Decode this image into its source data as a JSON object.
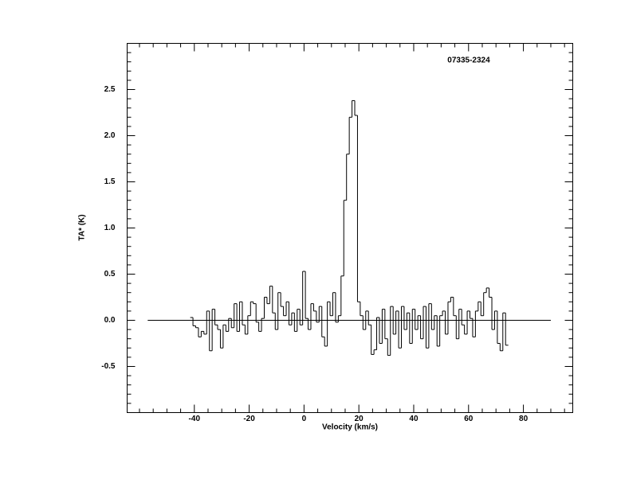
{
  "chart_data": {
    "type": "step",
    "title": "07335-2324",
    "x_label": "Velocity (km/s)",
    "y_label": "TA* (K)",
    "color": "#000000",
    "xlim": [
      -64.5,
      98
    ],
    "ylim": [
      -1,
      3
    ],
    "xticks": [
      -40,
      -20,
      0,
      20,
      40,
      60,
      80
    ],
    "yticks": [
      -0.5,
      {
        "value": 0,
        "label": "0.0"
      },
      0.5,
      {
        "value": 1,
        "label": "1.0"
      },
      1.5,
      {
        "value": 2,
        "label": "2.0"
      },
      2.5
    ],
    "xminorticks": [
      -60,
      -55,
      -50,
      -45,
      -35,
      -30,
      -25,
      -15,
      -10,
      -5,
      5,
      10,
      15,
      25,
      30,
      35,
      45,
      50,
      55,
      65,
      70,
      75,
      85,
      90,
      95
    ],
    "yminorticks": [
      -0.9,
      -0.8,
      -0.7,
      -0.6,
      -0.4,
      -0.3,
      -0.2,
      -0.1,
      0.1,
      0.2,
      0.3,
      0.4,
      0.6,
      0.7,
      0.8,
      0.9,
      1.1,
      1.2,
      1.3,
      1.4,
      1.6,
      1.7,
      1.8,
      1.9,
      2.1,
      2.2,
      2.3,
      2.4,
      2.6,
      2.7,
      2.8,
      2.9
    ],
    "baseline": {
      "xlim": [
        -57,
        90
      ],
      "value": 0
    },
    "x": [
      -41,
      -40,
      -39,
      -38,
      -37,
      -36,
      -35,
      -34,
      -33,
      -32,
      -31,
      -30,
      -29,
      -28,
      -27,
      -26,
      -25,
      -24,
      -23,
      -22,
      -21,
      -20,
      -19,
      -18,
      -17,
      -16,
      -15,
      -14,
      -13,
      -12,
      -11,
      -10,
      -9,
      -8,
      -7,
      -6,
      -5,
      -4,
      -3,
      -2,
      -1,
      0,
      1,
      2,
      3,
      4,
      5,
      6,
      7,
      8,
      9,
      10,
      11,
      12,
      13,
      14,
      15,
      16,
      17,
      18,
      19,
      20,
      21,
      22,
      23,
      24,
      25,
      26,
      27,
      28,
      29,
      30,
      31,
      32,
      33,
      34,
      35,
      36,
      37,
      38,
      39,
      40,
      41,
      42,
      43,
      44,
      45,
      46,
      47,
      48,
      49,
      50,
      51,
      52,
      53,
      54,
      55,
      56,
      57,
      58,
      59,
      60,
      61,
      62,
      63,
      64,
      65,
      66,
      67,
      68,
      69,
      70,
      71,
      72,
      73,
      74
    ],
    "values": [
      0.03,
      -0.06,
      -0.08,
      -0.18,
      -0.12,
      -0.15,
      0.1,
      -0.33,
      0.12,
      -0.05,
      -0.1,
      -0.3,
      -0.05,
      -0.12,
      0.02,
      -0.08,
      0.18,
      -0.12,
      0.2,
      -0.05,
      -0.15,
      0.05,
      0.2,
      0.18,
      -0.02,
      -0.12,
      0.02,
      0.25,
      0.18,
      0.37,
      0.08,
      -0.1,
      0.3,
      0.15,
      0.05,
      0.2,
      -0.05,
      0.08,
      -0.12,
      0.12,
      -0.05,
      0.53,
      0.02,
      -0.1,
      0.18,
      0.1,
      -0.02,
      0.15,
      -0.18,
      -0.28,
      0.2,
      0.05,
      0.3,
      -0.02,
      0.05,
      0.48,
      1.3,
      1.8,
      2.2,
      2.38,
      2.22,
      0.2,
      0.05,
      -0.1,
      0.1,
      -0.05,
      -0.37,
      -0.32,
      0.03,
      -0.25,
      0.12,
      -0.2,
      -0.38,
      0.15,
      -0.15,
      0.1,
      -0.3,
      0.15,
      -0.1,
      0.08,
      -0.25,
      0.12,
      -0.1,
      0.05,
      -0.2,
      0.15,
      -0.3,
      0.18,
      -0.1,
      0.05,
      -0.28,
      0.05,
      0.1,
      -0.15,
      0.2,
      0.25,
      0.05,
      -0.2,
      0.12,
      -0.05,
      -0.15,
      0.1,
      0.02,
      -0.18,
      0.1,
      0.2,
      0.05,
      0.3,
      0.35,
      0.25,
      -0.1,
      0.1,
      -0.25,
      -0.33,
      0.08,
      -0.27
    ]
  }
}
